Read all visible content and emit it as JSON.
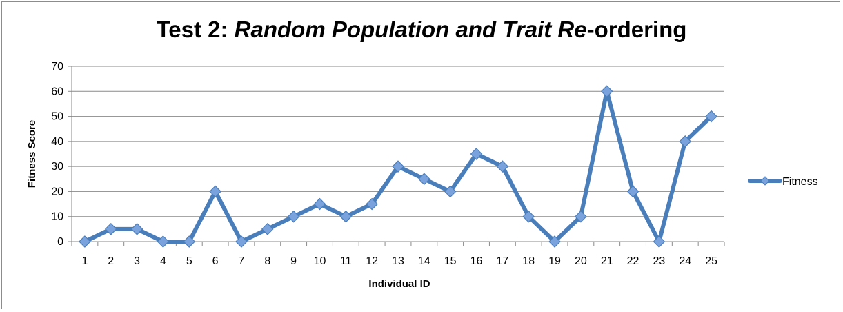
{
  "chart_data": {
    "type": "line",
    "title": {
      "part1": "Test 2: ",
      "part2": "Random Population and Trait Re",
      "part3": "-ordering"
    },
    "xlabel": "Individual ID",
    "ylabel": "Fitness Score",
    "ylim": [
      0,
      70
    ],
    "yticks": [
      0,
      10,
      20,
      30,
      40,
      50,
      60,
      70
    ],
    "categories": [
      "1",
      "2",
      "3",
      "4",
      "5",
      "6",
      "7",
      "8",
      "9",
      "10",
      "11",
      "12",
      "13",
      "14",
      "15",
      "16",
      "17",
      "18",
      "19",
      "20",
      "21",
      "22",
      "23",
      "24",
      "25"
    ],
    "series": [
      {
        "name": "Fitness",
        "color": "#4a7ebb",
        "marker_color": "#7aa3dd",
        "values": [
          0,
          5,
          5,
          0,
          0,
          20,
          0,
          5,
          10,
          15,
          10,
          15,
          30,
          25,
          20,
          35,
          30,
          10,
          0,
          10,
          60,
          20,
          0,
          40,
          50
        ]
      }
    ],
    "grid": true,
    "legend_position": "right"
  }
}
